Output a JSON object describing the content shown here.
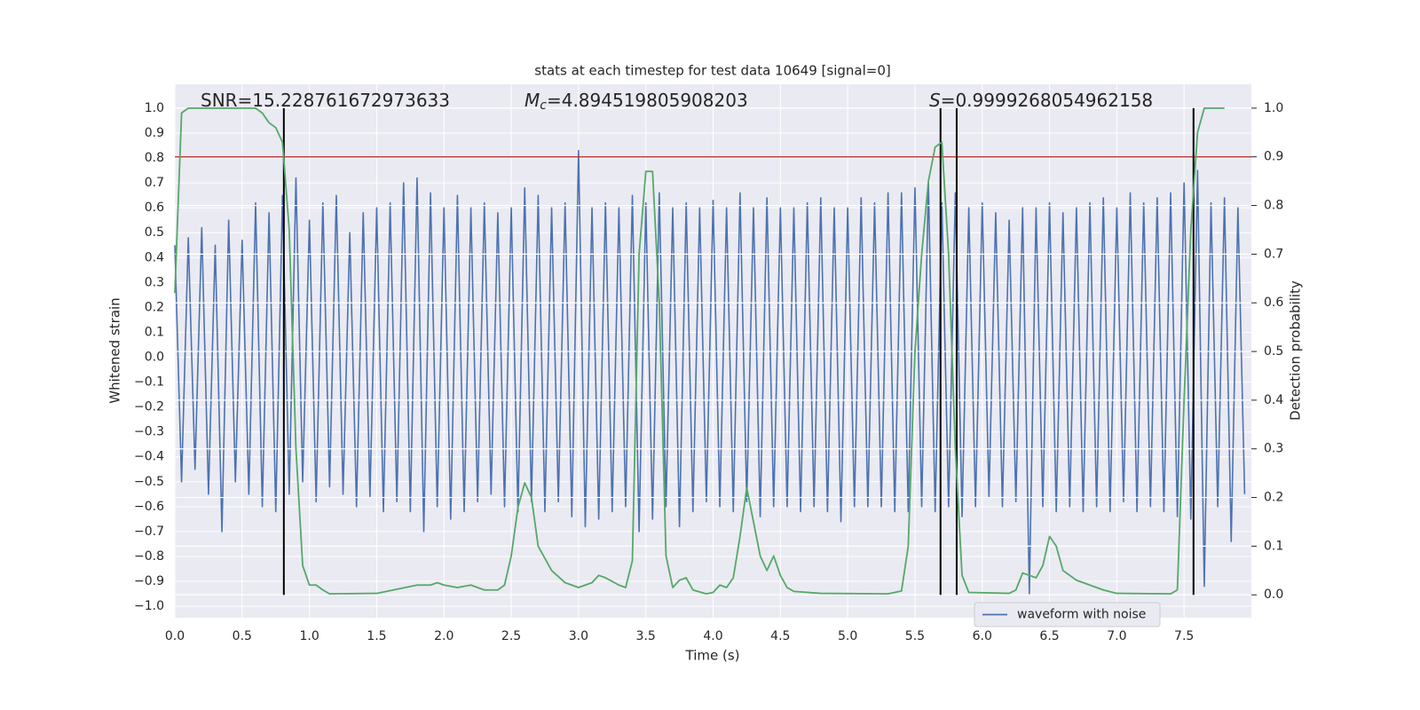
{
  "chart_data": {
    "type": "line",
    "title": "stats at each timestep for test data 10649 [signal=0]",
    "xlabel": "Time (s)",
    "ylabel": "Whitened strain",
    "y2label": "Detection probability",
    "annotations": [
      {
        "text": "SNR=15.228761672973633"
      },
      {
        "symbol": "M",
        "sub": "c",
        "text": "=4.894519805908203"
      },
      {
        "symbol": "S",
        "text": "=0.9999268054962158"
      }
    ],
    "xlim": [
      0,
      8
    ],
    "xticks": [
      {
        "value": 0,
        "label": "0.0"
      },
      {
        "value": 0.5,
        "label": "0.5"
      },
      {
        "value": 1,
        "label": "1.0"
      },
      {
        "value": 1.5,
        "label": "1.5"
      },
      {
        "value": 2,
        "label": "2.0"
      },
      {
        "value": 2.5,
        "label": "2.5"
      },
      {
        "value": 3,
        "label": "3.0"
      },
      {
        "value": 3.5,
        "label": "3.5"
      },
      {
        "value": 4,
        "label": "4.0"
      },
      {
        "value": 4.5,
        "label": "4.5"
      },
      {
        "value": 5,
        "label": "5.0"
      },
      {
        "value": 5.5,
        "label": "5.5"
      },
      {
        "value": 6,
        "label": "6.0"
      },
      {
        "value": 6.5,
        "label": "6.5"
      },
      {
        "value": 7,
        "label": "7.0"
      },
      {
        "value": 7.5,
        "label": "7.5"
      }
    ],
    "ylim": [
      -1.046,
      1.096
    ],
    "yticks": [
      {
        "value": -1,
        "label": "−1.0"
      },
      {
        "value": -0.9,
        "label": "−0.9"
      },
      {
        "value": -0.8,
        "label": "−0.8"
      },
      {
        "value": -0.7,
        "label": "−0.7"
      },
      {
        "value": -0.6,
        "label": "−0.6"
      },
      {
        "value": -0.5,
        "label": "−0.5"
      },
      {
        "value": -0.4,
        "label": "−0.4"
      },
      {
        "value": -0.3,
        "label": "−0.3"
      },
      {
        "value": -0.2,
        "label": "−0.2"
      },
      {
        "value": -0.1,
        "label": "−0.1"
      },
      {
        "value": 0,
        "label": "0.0"
      },
      {
        "value": 0.1,
        "label": "0.1"
      },
      {
        "value": 0.2,
        "label": "0.2"
      },
      {
        "value": 0.3,
        "label": "0.3"
      },
      {
        "value": 0.4,
        "label": "0.4"
      },
      {
        "value": 0.5,
        "label": "0.5"
      },
      {
        "value": 0.6,
        "label": "0.6"
      },
      {
        "value": 0.7,
        "label": "0.7"
      },
      {
        "value": 0.8,
        "label": "0.8"
      },
      {
        "value": 0.9,
        "label": "0.9"
      },
      {
        "value": 1,
        "label": "1.0"
      }
    ],
    "y2lim": [
      -0.047,
      1.049
    ],
    "y2ticks": [
      {
        "value": 0,
        "label": "0.0"
      },
      {
        "value": 0.1,
        "label": "0.1"
      },
      {
        "value": 0.2,
        "label": "0.2"
      },
      {
        "value": 0.3,
        "label": "0.3"
      },
      {
        "value": 0.4,
        "label": "0.4"
      },
      {
        "value": 0.5,
        "label": "0.5"
      },
      {
        "value": 0.6,
        "label": "0.6"
      },
      {
        "value": 0.7,
        "label": "0.7"
      },
      {
        "value": 0.8,
        "label": "0.8"
      },
      {
        "value": 0.9,
        "label": "0.9"
      },
      {
        "value": 1,
        "label": "1.0"
      }
    ],
    "grid": true,
    "legend": "lower right",
    "series": [
      {
        "name": "waveform with noise",
        "color": "#4c72b0",
        "x": [
          0,
          0.05,
          0.1,
          0.15,
          0.2,
          0.25,
          0.3,
          0.35,
          0.4,
          0.45,
          0.5,
          0.55,
          0.6,
          0.65,
          0.7,
          0.75,
          0.8,
          0.85,
          0.9,
          0.95,
          1,
          1.05,
          1.1,
          1.15,
          1.2,
          1.25,
          1.3,
          1.35,
          1.4,
          1.45,
          1.5,
          1.55,
          1.6,
          1.65,
          1.7,
          1.75,
          1.8,
          1.85,
          1.9,
          1.95,
          2,
          2.05,
          2.1,
          2.15,
          2.2,
          2.25,
          2.3,
          2.35,
          2.4,
          2.45,
          2.5,
          2.55,
          2.6,
          2.65,
          2.7,
          2.75,
          2.8,
          2.85,
          2.9,
          2.95,
          3,
          3.05,
          3.1,
          3.15,
          3.2,
          3.25,
          3.3,
          3.35,
          3.4,
          3.45,
          3.5,
          3.55,
          3.6,
          3.65,
          3.7,
          3.75,
          3.8,
          3.85,
          3.9,
          3.95,
          4,
          4.05,
          4.1,
          4.15,
          4.2,
          4.25,
          4.3,
          4.35,
          4.4,
          4.45,
          4.5,
          4.55,
          4.6,
          4.65,
          4.7,
          4.75,
          4.8,
          4.85,
          4.9,
          4.95,
          5,
          5.05,
          5.1,
          5.15,
          5.2,
          5.25,
          5.3,
          5.35,
          5.4,
          5.45,
          5.5,
          5.55,
          5.6,
          5.65,
          5.7,
          5.75,
          5.8,
          5.85,
          5.9,
          5.95,
          6,
          6.05,
          6.1,
          6.15,
          6.2,
          6.25,
          6.3,
          6.35,
          6.4,
          6.45,
          6.5,
          6.55,
          6.6,
          6.65,
          6.7,
          6.75,
          6.8,
          6.85,
          6.9,
          6.95,
          7,
          7.05,
          7.1,
          7.15,
          7.2,
          7.25,
          7.3,
          7.35,
          7.4,
          7.45,
          7.5,
          7.55,
          7.6,
          7.65,
          7.7,
          7.75,
          7.8,
          7.85,
          7.9,
          7.95
        ],
        "values": [
          0.45,
          -0.5,
          0.48,
          -0.45,
          0.52,
          -0.55,
          0.45,
          -0.7,
          0.55,
          -0.5,
          0.47,
          -0.55,
          0.62,
          -0.6,
          0.58,
          -0.62,
          0.65,
          -0.55,
          0.72,
          -0.5,
          0.55,
          -0.58,
          0.62,
          -0.52,
          0.65,
          -0.55,
          0.5,
          -0.6,
          0.58,
          -0.56,
          0.6,
          -0.62,
          0.62,
          -0.58,
          0.7,
          -0.62,
          0.72,
          -0.7,
          0.66,
          -0.6,
          0.6,
          -0.65,
          0.65,
          -0.62,
          0.6,
          -0.58,
          0.62,
          -0.55,
          0.58,
          -0.6,
          0.6,
          -0.62,
          0.68,
          -0.58,
          0.65,
          -0.62,
          0.6,
          -0.58,
          0.62,
          -0.64,
          0.83,
          -0.68,
          0.6,
          -0.65,
          0.62,
          -0.62,
          0.6,
          -0.6,
          0.65,
          -0.7,
          0.62,
          -0.65,
          0.66,
          -0.6,
          0.6,
          -0.68,
          0.62,
          -0.62,
          0.6,
          -0.58,
          0.63,
          -0.6,
          0.6,
          -0.62,
          0.66,
          -0.58,
          0.6,
          -0.64,
          0.64,
          -0.6,
          0.6,
          -0.6,
          0.6,
          -0.62,
          0.62,
          -0.6,
          0.64,
          -0.62,
          0.6,
          -0.66,
          0.6,
          -0.6,
          0.64,
          -0.6,
          0.62,
          -0.6,
          0.66,
          -0.62,
          0.66,
          -0.62,
          0.68,
          -0.6,
          0.7,
          -0.62,
          0.62,
          -0.6,
          0.66,
          -0.64,
          0.6,
          -0.6,
          0.62,
          -0.56,
          0.58,
          -0.6,
          0.55,
          -0.58,
          0.6,
          -0.95,
          0.6,
          -0.6,
          0.62,
          -0.62,
          0.58,
          -0.6,
          0.6,
          -0.62,
          0.62,
          -0.6,
          0.64,
          -0.62,
          0.6,
          -0.58,
          0.66,
          -0.62,
          0.62,
          -0.6,
          0.64,
          -0.62,
          0.66,
          -0.64,
          0.7,
          -0.65,
          0.75,
          -0.92,
          0.62,
          -0.6,
          0.64,
          -0.74,
          0.6,
          -0.55
        ]
      },
      {
        "color": "#55a868",
        "axis": "y2",
        "x": [
          0,
          0.05,
          0.1,
          0.6,
          0.65,
          0.7,
          0.75,
          0.8,
          0.85,
          0.9,
          0.95,
          1,
          1.05,
          1.1,
          1.15,
          1.5,
          1.8,
          1.9,
          1.95,
          2,
          2.1,
          2.2,
          2.3,
          2.4,
          2.45,
          2.5,
          2.55,
          2.6,
          2.65,
          2.7,
          2.8,
          2.9,
          3,
          3.1,
          3.15,
          3.2,
          3.3,
          3.35,
          3.4,
          3.45,
          3.5,
          3.55,
          3.6,
          3.65,
          3.7,
          3.75,
          3.8,
          3.85,
          3.95,
          4,
          4.05,
          4.1,
          4.15,
          4.2,
          4.25,
          4.3,
          4.35,
          4.4,
          4.45,
          4.5,
          4.55,
          4.6,
          4.8,
          5.3,
          5.4,
          5.45,
          5.5,
          5.55,
          5.6,
          5.65,
          5.7,
          5.75,
          5.8,
          5.85,
          5.9,
          6.2,
          6.25,
          6.3,
          6.35,
          6.4,
          6.45,
          6.5,
          6.55,
          6.6,
          6.7,
          6.8,
          6.9,
          7,
          7.4,
          7.45,
          7.5,
          7.55,
          7.6,
          7.65,
          7.8
        ],
        "values": [
          0.62,
          0.99,
          1,
          1,
          0.99,
          0.97,
          0.96,
          0.93,
          0.75,
          0.3,
          0.06,
          0.02,
          0.02,
          0.01,
          0.002,
          0.003,
          0.02,
          0.02,
          0.025,
          0.02,
          0.015,
          0.02,
          0.01,
          0.01,
          0.02,
          0.08,
          0.18,
          0.23,
          0.2,
          0.1,
          0.05,
          0.025,
          0.015,
          0.025,
          0.04,
          0.035,
          0.02,
          0.015,
          0.07,
          0.7,
          0.87,
          0.87,
          0.6,
          0.08,
          0.015,
          0.03,
          0.035,
          0.01,
          0.002,
          0.005,
          0.02,
          0.015,
          0.035,
          0.12,
          0.22,
          0.15,
          0.08,
          0.05,
          0.08,
          0.04,
          0.015,
          0.007,
          0.003,
          0.002,
          0.008,
          0.1,
          0.5,
          0.7,
          0.85,
          0.92,
          0.93,
          0.7,
          0.3,
          0.04,
          0.005,
          0.003,
          0.01,
          0.045,
          0.04,
          0.035,
          0.06,
          0.12,
          0.1,
          0.05,
          0.03,
          0.02,
          0.01,
          0.003,
          0.002,
          0.01,
          0.4,
          0.75,
          0.95,
          1,
          1
        ]
      }
    ],
    "hline": {
      "y2": 0.9,
      "color": "#c03d3e"
    },
    "vlines": {
      "x": [
        0.81,
        5.69,
        5.81,
        7.57
      ],
      "y2range": [
        0,
        1
      ],
      "color": "#000000"
    }
  }
}
